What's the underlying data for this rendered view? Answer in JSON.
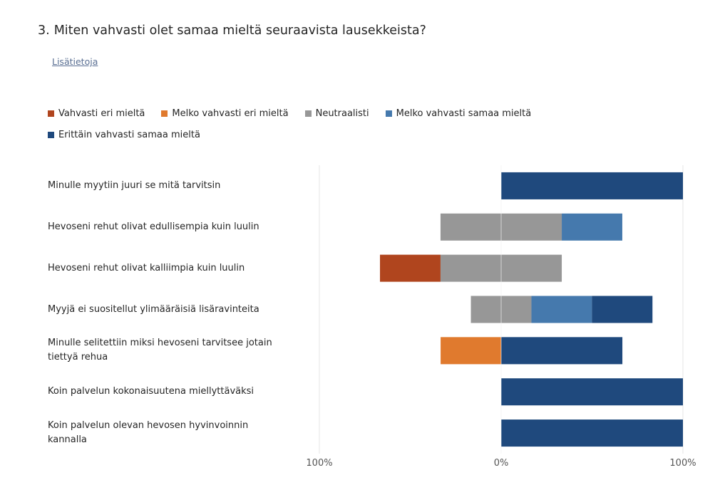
{
  "question": {
    "number": "3.",
    "text": "Miten vahvasti olet samaa mieltä seuraavista lausekkeista?"
  },
  "more_info_label": "Lisätietoja",
  "chart_data": {
    "type": "bar",
    "orientation": "horizontal-diverging",
    "legend_placement": "top-left",
    "xlim": [
      -100,
      100
    ],
    "x_ticks": [
      "100%",
      "0%",
      "100%"
    ],
    "categories": [
      "Minulle myytiin juuri se mitä tarvitsin",
      "Hevoseni rehut olivat edullisempia kuin luulin",
      "Hevoseni rehut olivat kalliimpia kuin luulin",
      "Myyjä ei suositellut ylimääräisiä lisäravinteita",
      "Minulle selitettiin miksi hevoseni tarvitsee jotain tiettyä rehua",
      "Koin palvelun kokonaisuutena miellyttäväksi",
      "Koin palvelun olevan hevosen hyvinvoinnin kannalla"
    ],
    "series": [
      {
        "name": "Vahvasti eri mieltä",
        "color": "#b0451e",
        "side": "negative",
        "values": [
          0,
          0,
          33.3,
          0,
          0,
          0,
          0
        ]
      },
      {
        "name": "Melko vahvasti eri mieltä",
        "color": "#e07a2e",
        "side": "negative",
        "values": [
          0,
          0,
          0,
          0,
          33.3,
          0,
          0
        ]
      },
      {
        "name": "Neutraalisti",
        "color": "#979797",
        "side": "neutral",
        "values": [
          0,
          66.7,
          66.7,
          33.3,
          0,
          0,
          0
        ]
      },
      {
        "name": "Melko vahvasti samaa mieltä",
        "color": "#4579ad",
        "side": "positive",
        "values": [
          0,
          33.3,
          0,
          33.3,
          0,
          0,
          0
        ]
      },
      {
        "name": "Erittäin vahvasti samaa mieltä",
        "color": "#1f497d",
        "side": "positive",
        "values": [
          100,
          0,
          0,
          33.3,
          66.7,
          100,
          100
        ]
      }
    ]
  }
}
